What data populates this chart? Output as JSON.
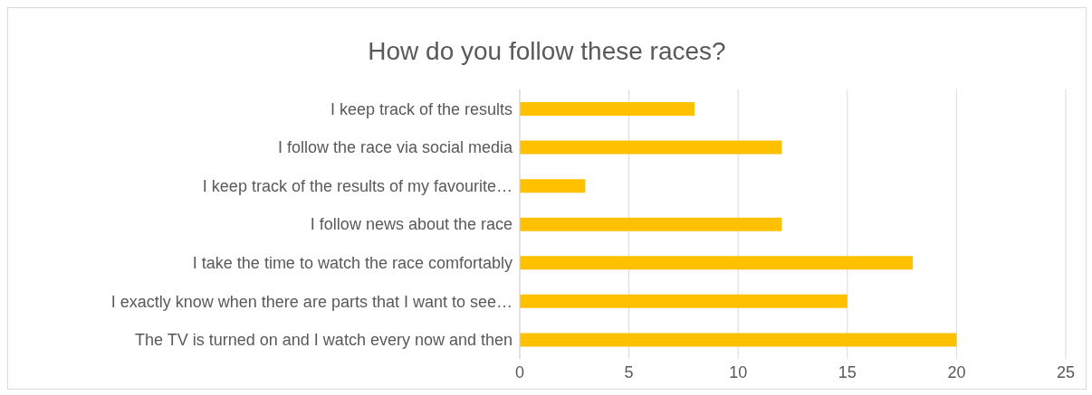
{
  "chart_data": {
    "type": "bar",
    "orientation": "horizontal",
    "title": "How do you follow these races?",
    "categories": [
      "I keep track of the results",
      "I follow the race via social media",
      "I keep track of the results of my favourite…",
      "I follow news about the race",
      "I take the time to watch the race comfortably",
      "I exactly know when there are parts that I want to see…",
      "The TV is turned on and I watch every now and then"
    ],
    "values": [
      8,
      12,
      3,
      12,
      18,
      15,
      20
    ],
    "color": "#ffc000",
    "xlim": [
      0,
      25
    ],
    "xticks": [
      0,
      5,
      10,
      15,
      20,
      25
    ],
    "grid": "x"
  }
}
